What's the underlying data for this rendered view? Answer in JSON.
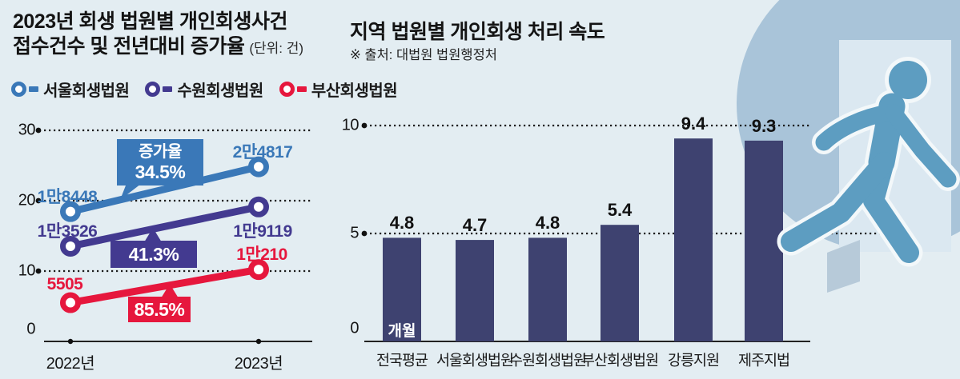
{
  "page": {
    "background": "#e3edf2"
  },
  "left_chart": {
    "title_line1": "2023년 회생 법원별 개인회생사건",
    "title_line2": "접수건수 및 전년대비 증가율",
    "unit_note": "(단위: 건)"
  },
  "right_chart": {
    "title": "지역 법원별 개인회생 처리 속도",
    "source": "※ 출처: 대법원 법원행정처",
    "unit_label": "개월"
  },
  "chart_data": [
    {
      "type": "line",
      "title": "2023년 회생 법원별 개인회생사건 접수건수 및 전년대비 증가율",
      "unit": "건",
      "x": [
        "2022년",
        "2023년"
      ],
      "ylim": [
        0,
        30
      ],
      "yticks": [
        0,
        10,
        20,
        30
      ],
      "y_axis_scale": 1000,
      "grid": "dotted",
      "legend_position": "top",
      "series": [
        {
          "name": "서울회생법원",
          "color": "#3a78b8",
          "values": [
            18448,
            24817
          ],
          "point_labels": [
            "1만8448",
            "2만4817"
          ],
          "growth_caption": "증가율",
          "growth_rate": "34.5%"
        },
        {
          "name": "수원회생법원",
          "color": "#433a90",
          "values": [
            13526,
            19119
          ],
          "point_labels": [
            "1만3526",
            "1만9119"
          ],
          "growth_rate": "41.3%"
        },
        {
          "name": "부산회생법원",
          "color": "#e6173d",
          "values": [
            5505,
            10210
          ],
          "point_labels": [
            "5505",
            "1만210"
          ],
          "growth_rate": "85.5%"
        }
      ]
    },
    {
      "type": "bar",
      "title": "지역 법원별 개인회생 처리 속도",
      "source": "※ 출처: 대법원 법원행정처",
      "categories": [
        "전국평균",
        "서울회생법원",
        "수원회생법원",
        "부산회생법원",
        "강릉지원",
        "제주지법"
      ],
      "values": [
        4.8,
        4.7,
        4.8,
        5.4,
        9.4,
        9.3
      ],
      "unit": "개월",
      "ylim": [
        0,
        10
      ],
      "yticks": [
        0,
        5,
        10
      ],
      "bar_color": "#3e4270",
      "grid": "dotted"
    }
  ],
  "decor": {
    "circle_color": "#a9c4d9",
    "door_color": "#dbe8f1",
    "door_panel_color": "#b7cad9",
    "person_color": "#5d9dc1",
    "person_outline_color": "#f3f8fa"
  }
}
